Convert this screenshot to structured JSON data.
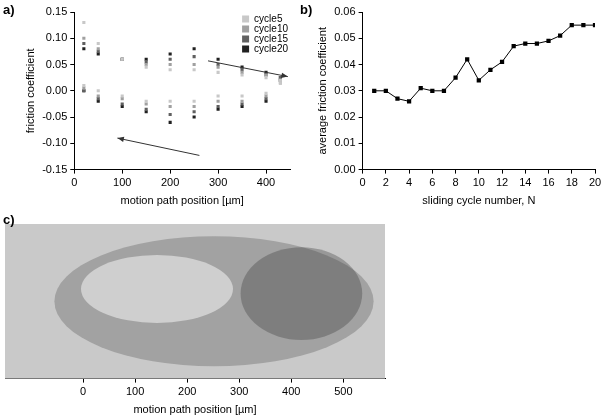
{
  "chart_data": [
    {
      "panel": "a)",
      "type": "scatter",
      "xlabel": "motion path position [µm]",
      "ylabel": "friction coefficient",
      "x": [
        20,
        50,
        100,
        150,
        200,
        250,
        300,
        350,
        400,
        430,
        430,
        400,
        350,
        300,
        250,
        200,
        150,
        100,
        50,
        20
      ],
      "series": [
        {
          "name": "cycle5",
          "color": "#c8c8c8",
          "marker": "square",
          "values": [
            0.13,
            0.09,
            0.06,
            0.045,
            0.04,
            0.04,
            0.035,
            0.03,
            0.025,
            0.02,
            0.015,
            -0.005,
            -0.01,
            -0.01,
            -0.02,
            -0.02,
            -0.02,
            -0.01,
            0,
            0.01
          ]
        },
        {
          "name": "cycle10",
          "color": "#a0a0a0",
          "marker": "square",
          "values": [
            0.1,
            0.08,
            0.06,
            0.05,
            0.05,
            0.05,
            0.045,
            0.035,
            0.03,
            0.02,
            0.015,
            -0.01,
            -0.02,
            -0.02,
            -0.03,
            -0.03,
            -0.025,
            -0.015,
            -0.01,
            0.005
          ]
        },
        {
          "name": "cycle15",
          "color": "#606060",
          "marker": "square",
          "values": [
            0.09,
            0.075,
            0.06,
            0.055,
            0.06,
            0.065,
            0.05,
            0.04,
            0.03,
            0.025,
            0.02,
            -0.015,
            -0.025,
            -0.03,
            -0.04,
            -0.045,
            -0.035,
            -0.025,
            -0.015,
            0
          ]
        },
        {
          "name": "cycle20",
          "color": "#202020",
          "marker": "square",
          "values": [
            0.08,
            0.07,
            0.06,
            0.06,
            0.07,
            0.08,
            0.06,
            0.045,
            0.035,
            0.025,
            0.02,
            -0.02,
            -0.03,
            -0.035,
            -0.05,
            -0.06,
            -0.04,
            -0.03,
            -0.02,
            0
          ]
        }
      ],
      "xlim": [
        0,
        450
      ],
      "xticks": [
        0,
        100,
        200,
        300,
        400
      ],
      "ylim": [
        -0.15,
        0.15
      ],
      "yticks": [
        {
          "value": -0.15,
          "label": "-0.15"
        },
        {
          "value": -0.1,
          "label": "-0.10"
        },
        {
          "value": -0.05,
          "label": "-0.05"
        },
        {
          "value": 0,
          "label": "0.00"
        },
        {
          "value": 0.05,
          "label": "0.05"
        },
        {
          "value": 0.1,
          "label": "0.10"
        },
        {
          "value": 0.15,
          "label": "0.15"
        }
      ],
      "legend": "top-right",
      "grid": false
    },
    {
      "panel": "b)",
      "type": "line",
      "xlabel": "sliding cycle number, N",
      "ylabel": "average friction coefficient",
      "x": [
        1,
        2,
        3,
        4,
        5,
        6,
        7,
        8,
        9,
        10,
        11,
        12,
        13,
        14,
        15,
        16,
        17,
        18,
        19,
        20
      ],
      "values": [
        0.03,
        0.03,
        0.027,
        0.026,
        0.031,
        0.03,
        0.03,
        0.035,
        0.042,
        0.034,
        0.038,
        0.041,
        0.047,
        0.048,
        0.048,
        0.049,
        0.051,
        0.055,
        0.055,
        0.055
      ],
      "color": "#000000",
      "marker": "square",
      "line_style": "solid",
      "xlim": [
        0,
        20
      ],
      "xticks": [
        0,
        2,
        4,
        6,
        8,
        10,
        12,
        14,
        16,
        18,
        20
      ],
      "ylim": [
        0,
        0.06
      ],
      "yticks": [
        {
          "value": 0,
          "label": "0.00"
        },
        {
          "value": 0.01,
          "label": "0.01"
        },
        {
          "value": 0.02,
          "label": "0.02"
        },
        {
          "value": 0.03,
          "label": "0.03"
        },
        {
          "value": 0.04,
          "label": "0.04"
        },
        {
          "value": 0.05,
          "label": "0.05"
        },
        {
          "value": 0.06,
          "label": "0.06"
        }
      ],
      "grid": false
    },
    {
      "panel": "c)",
      "type": "image",
      "xlabel": "motion path position [µm]",
      "xlim": [
        -150,
        580
      ],
      "xticks": [
        0,
        100,
        200,
        300,
        400,
        500
      ],
      "tick_labels": "x"
    }
  ]
}
